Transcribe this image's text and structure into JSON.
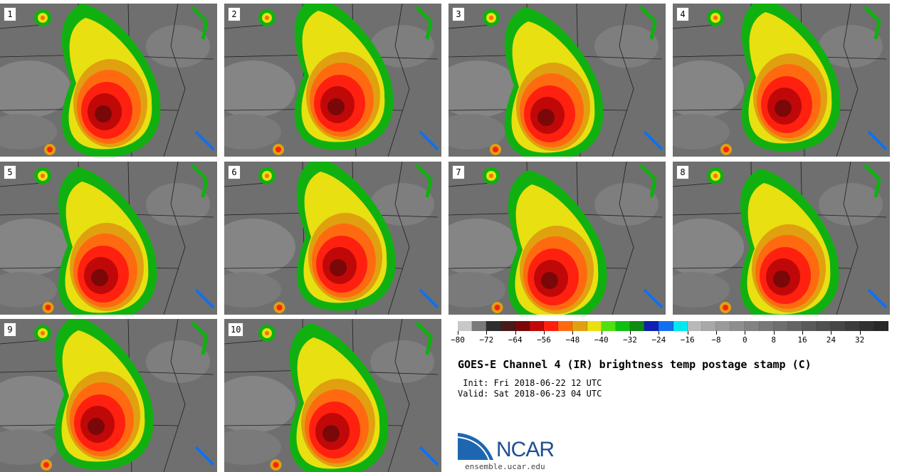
{
  "panels": [
    {
      "label": "1"
    },
    {
      "label": "2"
    },
    {
      "label": "3"
    },
    {
      "label": "4"
    },
    {
      "label": "5"
    },
    {
      "label": "6"
    },
    {
      "label": "7"
    },
    {
      "label": "8"
    },
    {
      "label": "9"
    },
    {
      "label": "10"
    }
  ],
  "colorbar": {
    "colors": [
      "#c8c8c8",
      "#7a7a7a",
      "#2e2e2e",
      "#4a1a1a",
      "#7a0808",
      "#c00808",
      "#ff2010",
      "#ff6a10",
      "#e0a010",
      "#e8e010",
      "#50e010",
      "#10c010",
      "#108a10",
      "#1020b0",
      "#1070f0",
      "#00e8f0",
      "#b8b8b8",
      "#a8a8a8",
      "#9a9a9a",
      "#8e8e8e",
      "#828282",
      "#787878",
      "#6e6e6e",
      "#646464",
      "#5a5a5a",
      "#505050",
      "#464646",
      "#3c3c3c",
      "#323232",
      "#282828"
    ],
    "tick_labels": [
      "−80",
      "−72",
      "−64",
      "−56",
      "−48",
      "−40",
      "−32",
      "−24",
      "−16",
      "−8",
      "0",
      "8",
      "16",
      "24",
      "32"
    ]
  },
  "title": "GOES-E Channel 4 (IR) brightness temp postage stamp (C)",
  "init_line": " Init: Fri 2018-06-22 12 UTC",
  "valid_line": "Valid: Sat 2018-06-23 04 UTC",
  "logo": {
    "name": "NCAR",
    "url": "ensemble.ucar.edu"
  }
}
